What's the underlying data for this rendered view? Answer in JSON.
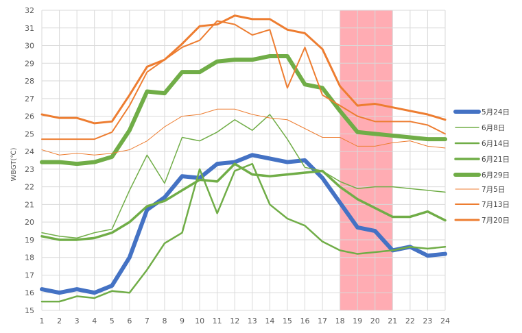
{
  "chart_data": {
    "type": "line",
    "title": "",
    "xlabel": "",
    "ylabel": "WBGT(℃)",
    "x": [
      1,
      2,
      3,
      4,
      5,
      6,
      7,
      8,
      9,
      10,
      11,
      12,
      13,
      14,
      15,
      16,
      17,
      18,
      19,
      20,
      21,
      22,
      23,
      24
    ],
    "ylim": [
      15,
      32
    ],
    "xlim": [
      1,
      24
    ],
    "grid": "horizontal and vertical",
    "legend_position": "right",
    "highlight_band": {
      "x_start": 18,
      "x_end": 21,
      "color": "#ff9ea6"
    },
    "series": [
      {
        "name": "5月24日",
        "color": "#4472c4",
        "width": 6,
        "values": [
          16.2,
          16.0,
          16.2,
          16.0,
          16.4,
          18.0,
          20.7,
          21.4,
          22.6,
          22.5,
          23.3,
          23.4,
          23.8,
          23.6,
          23.4,
          23.5,
          22.5,
          21.1,
          19.7,
          19.5,
          18.4,
          18.6,
          18.1,
          18.2
        ]
      },
      {
        "name": "6月8日",
        "color": "#70ad47",
        "width": 1.5,
        "values": [
          19.4,
          19.2,
          19.1,
          19.4,
          19.6,
          21.8,
          23.8,
          22.2,
          24.8,
          24.6,
          25.1,
          25.8,
          25.2,
          26.1,
          24.7,
          23.1,
          22.9,
          22.3,
          21.9,
          22.0,
          22.0,
          21.9,
          21.8,
          21.7
        ]
      },
      {
        "name": "6月14日",
        "color": "#70ad47",
        "width": 2.5,
        "values": [
          15.5,
          15.5,
          15.8,
          15.7,
          16.1,
          16.0,
          17.3,
          18.8,
          19.4,
          23.0,
          20.5,
          22.9,
          23.3,
          21.0,
          20.2,
          19.8,
          18.9,
          18.4,
          18.2,
          18.3,
          18.4,
          18.6,
          18.5,
          18.6
        ]
      },
      {
        "name": "6月21日",
        "color": "#70ad47",
        "width": 3.5,
        "values": [
          19.2,
          19.0,
          19.0,
          19.1,
          19.4,
          20.0,
          20.9,
          21.2,
          21.8,
          22.4,
          22.3,
          23.3,
          22.7,
          22.6,
          22.7,
          22.8,
          22.9,
          22.0,
          21.3,
          20.8,
          20.3,
          20.3,
          20.6,
          20.1
        ]
      },
      {
        "name": "6月29日",
        "color": "#70ad47",
        "width": 6,
        "values": [
          23.4,
          23.4,
          23.3,
          23.4,
          23.7,
          25.2,
          27.4,
          27.3,
          28.5,
          28.5,
          29.1,
          29.2,
          29.2,
          29.4,
          29.4,
          27.8,
          27.6,
          26.3,
          25.1,
          25.0,
          24.9,
          24.8,
          24.7,
          24.7
        ]
      },
      {
        "name": "7月5日",
        "color": "#ed7d31",
        "width": 1,
        "values": [
          24.1,
          23.8,
          23.9,
          23.8,
          23.9,
          24.1,
          24.6,
          25.4,
          26.0,
          26.1,
          26.4,
          26.4,
          26.1,
          25.9,
          25.8,
          25.3,
          24.8,
          24.8,
          24.3,
          24.3,
          24.5,
          24.6,
          24.3,
          24.2
        ]
      },
      {
        "name": "7月13日",
        "color": "#ed7d31",
        "width": 2,
        "values": [
          24.7,
          24.7,
          24.7,
          24.7,
          25.1,
          26.6,
          28.5,
          29.2,
          29.9,
          30.3,
          31.4,
          31.2,
          30.6,
          30.9,
          27.6,
          29.9,
          27.2,
          26.6,
          26.0,
          25.7,
          25.7,
          25.7,
          25.5,
          25.0
        ]
      },
      {
        "name": "7月20日",
        "color": "#ed7d31",
        "width": 3,
        "values": [
          26.1,
          25.9,
          25.9,
          25.6,
          25.7,
          27.2,
          28.8,
          29.2,
          30.1,
          31.1,
          31.2,
          31.7,
          31.5,
          31.5,
          30.9,
          30.7,
          29.8,
          27.7,
          26.6,
          26.7,
          26.5,
          26.3,
          26.1,
          25.8
        ]
      }
    ]
  }
}
